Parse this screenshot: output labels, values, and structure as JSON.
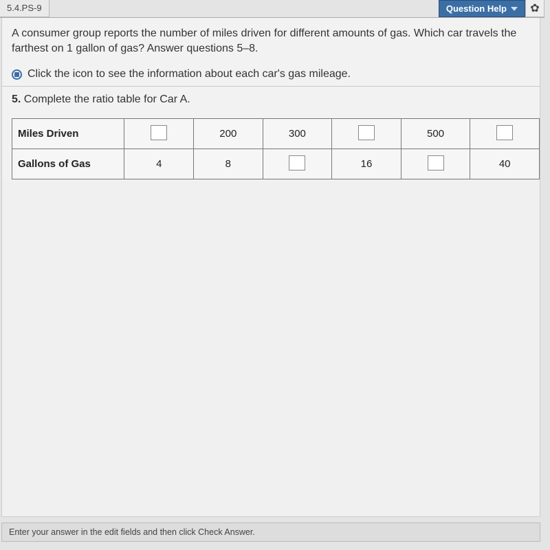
{
  "topbar": {
    "lesson_id": "5.4.PS-9",
    "help_label": "Question Help"
  },
  "problem": {
    "intro": "A consumer group reports the number of miles driven for different amounts of gas. Which car travels the farthest on 1 gallon of gas? Answer questions 5–8.",
    "click_line": "Click the icon to see the information about each car's gas mileage.",
    "q5_label": "5.",
    "q5_text": "Complete the ratio table for Car A."
  },
  "ratio_table": {
    "row1_header": "Miles Driven",
    "row2_header": "Gallons of Gas",
    "row1": [
      "",
      "200",
      "300",
      "",
      "500",
      ""
    ],
    "row2": [
      "4",
      "8",
      "",
      "16",
      "",
      "40"
    ],
    "blank_marker": ""
  },
  "footer": {
    "hint": "Enter your answer in the edit fields and then click Check Answer."
  },
  "colors": {
    "accent": "#3b6ea5",
    "page_bg": "#e4e4e4",
    "panel_bg": "#f2f2f2",
    "border": "#c8c8c8",
    "table_border": "#777"
  }
}
